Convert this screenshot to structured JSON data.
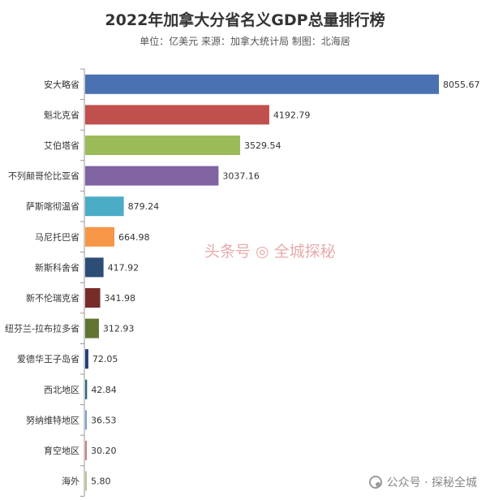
{
  "chart_data": {
    "type": "bar",
    "orientation": "horizontal",
    "title": "2022年加拿大分省名义GDP总量排行榜",
    "subtitle": "单位：亿美元   来源：加拿大统计局  制图：北海居",
    "categories": [
      "安大略省",
      "魁北克省",
      "艾伯塔省",
      "不列颠哥伦比亚省",
      "萨斯喀彻温省",
      "马尼托巴省",
      "新斯科舍省",
      "新不伦瑞克省",
      "纽芬兰-拉布拉多省",
      "爱德华王子岛省",
      "西北地区",
      "努纳维特地区",
      "育空地区",
      "海外"
    ],
    "values": [
      8055.67,
      4192.79,
      3529.54,
      3037.16,
      879.24,
      664.98,
      417.92,
      341.98,
      312.93,
      72.05,
      42.84,
      36.53,
      30.2,
      5.8
    ],
    "value_labels": [
      "8055.67",
      "4192.79",
      "3529.54",
      "3037.16",
      "879.24",
      "664.98",
      "417.92",
      "341.98",
      "312.93",
      "72.05",
      "42.84",
      "36.53",
      "30.20",
      "5.80"
    ],
    "colors": [
      "#4a72b3",
      "#c0504d",
      "#9bbb59",
      "#8064a2",
      "#4bacc6",
      "#f79646",
      "#2c4d75",
      "#772c2a",
      "#5f7530",
      "#1f3f7a",
      "#276a7c",
      "#7a9fd0",
      "#d17a78",
      "#b3c98a"
    ],
    "xlim": [
      0,
      8055.67
    ],
    "grid": false,
    "legend": "none"
  },
  "watermarks": {
    "left": "头条号 ◎ 全城探秘",
    "right": "公众号 · 探秘全城"
  }
}
